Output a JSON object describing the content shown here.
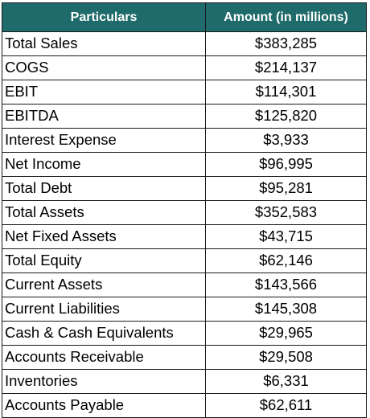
{
  "table": {
    "headers": {
      "particulars": "Particulars",
      "amount": "Amount (in millions)"
    },
    "rows": [
      {
        "label": "Total Sales",
        "amount": "$383,285"
      },
      {
        "label": "COGS",
        "amount": "$214,137"
      },
      {
        "label": "EBIT",
        "amount": "$114,301"
      },
      {
        "label": "EBITDA",
        "amount": "$125,820"
      },
      {
        "label": "Interest Expense",
        "amount": "$3,933"
      },
      {
        "label": "Net Income",
        "amount": "$96,995"
      },
      {
        "label": "Total Debt",
        "amount": "$95,281"
      },
      {
        "label": "Total Assets",
        "amount": "$352,583"
      },
      {
        "label": "Net Fixed Assets",
        "amount": "$43,715"
      },
      {
        "label": "Total Equity",
        "amount": "$62,146"
      },
      {
        "label": "Current Assets",
        "amount": "$143,566"
      },
      {
        "label": "Current Liabilities",
        "amount": "$145,308"
      },
      {
        "label": "Cash & Cash Equivalents",
        "amount": "$29,965"
      },
      {
        "label": "Accounts Receivable",
        "amount": "$29,508"
      },
      {
        "label": "Inventories",
        "amount": "$6,331"
      },
      {
        "label": "Accounts Payable",
        "amount": "$62,611"
      }
    ]
  },
  "colors": {
    "header_background": "#1f6a6a",
    "header_text": "#ffffff",
    "border": "#1a1a1a"
  }
}
